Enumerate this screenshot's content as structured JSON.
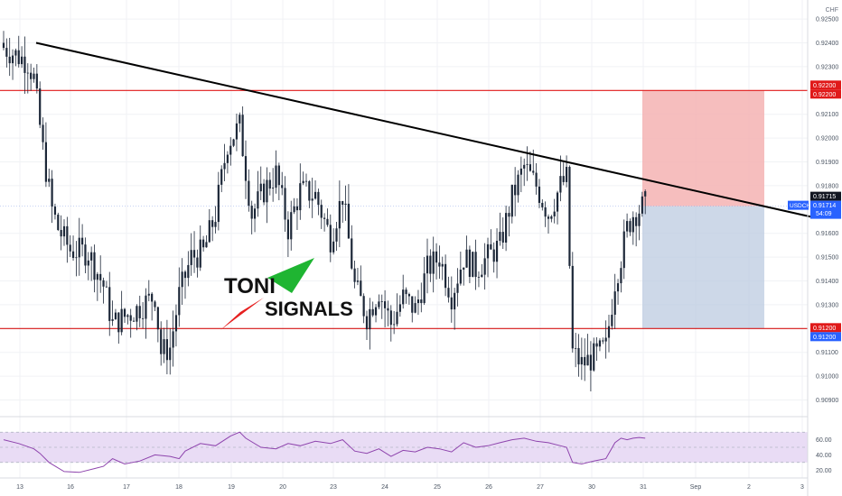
{
  "chart_data": {
    "type": "candlestick",
    "symbol": "USDCHF",
    "currency": "CHF",
    "price_axis": {
      "range": [
        0.9083,
        0.9258
      ],
      "ticks": [
        "0.92500",
        "0.92400",
        "0.92300",
        "0.92100",
        "0.92000",
        "0.91900",
        "0.91800",
        "0.91600",
        "0.91500",
        "0.91400",
        "0.91300",
        "0.91100",
        "0.91000",
        "0.90900"
      ]
    },
    "time_axis": {
      "ticks": [
        "13",
        "16",
        "17",
        "18",
        "19",
        "20",
        "23",
        "24",
        "25",
        "26",
        "27",
        "30",
        "31",
        "Sep",
        "2",
        "3"
      ]
    },
    "candles": {
      "count": 150,
      "start_price": 0.924,
      "path": [
        [
          0,
          0.9238
        ],
        [
          8,
          0.9232
        ],
        [
          10,
          0.9225
        ],
        [
          13,
          0.9195
        ],
        [
          16,
          0.917
        ],
        [
          18,
          0.9162
        ],
        [
          22,
          0.9153
        ],
        [
          28,
          0.9152
        ],
        [
          33,
          0.9138
        ],
        [
          36,
          0.9122
        ],
        [
          44,
          0.9128
        ],
        [
          50,
          0.9134
        ],
        [
          52,
          0.911
        ],
        [
          55,
          0.9112
        ],
        [
          58,
          0.9134
        ],
        [
          62,
          0.915
        ],
        [
          66,
          0.9152
        ],
        [
          70,
          0.9168
        ],
        [
          74,
          0.9198
        ],
        [
          78,
          0.9205
        ],
        [
          82,
          0.9168
        ],
        [
          86,
          0.9178
        ],
        [
          90,
          0.9185
        ],
        [
          94,
          0.9162
        ],
        [
          98,
          0.9178
        ],
        [
          103,
          0.9176
        ],
        [
          108,
          0.9158
        ],
        [
          112,
          0.9176
        ],
        [
          116,
          0.9138
        ],
        [
          120,
          0.9125
        ],
        [
          124,
          0.9136
        ],
        [
          128,
          0.9122
        ],
        [
          132,
          0.9133
        ],
        [
          136,
          0.9128
        ],
        [
          140,
          0.9145
        ],
        [
          144,
          0.915
        ],
        [
          148,
          0.9134
        ],
        [
          152,
          0.915
        ],
        [
          156,
          0.9145
        ],
        [
          160,
          0.915
        ],
        [
          164,
          0.9155
        ],
        [
          168,
          0.9175
        ],
        [
          172,
          0.9188
        ],
        [
          176,
          0.918
        ],
        [
          180,
          0.9168
        ],
        [
          184,
          0.918
        ],
        [
          186,
          0.9183
        ],
        [
          188,
          0.911
        ],
        [
          191,
          0.9105
        ],
        [
          195,
          0.9108
        ],
        [
          199,
          0.9112
        ],
        [
          202,
          0.914
        ],
        [
          204,
          0.915
        ],
        [
          206,
          0.9162
        ],
        [
          208,
          0.9168
        ],
        [
          210,
          0.917
        ],
        [
          212,
          0.9172
        ]
      ]
    },
    "last_price": "0.91714",
    "countdown": "54:09",
    "high_label": "0.91715",
    "resistance": {
      "value": "0.92200",
      "label_top": "0.92200"
    },
    "support": {
      "value": "0.91200",
      "label_bottom": "0.91200"
    },
    "trendline": {
      "from": [
        "13",
        0.924
      ],
      "to": [
        "3",
        0.9167
      ]
    },
    "position": {
      "entry": 0.91714,
      "stop": 0.922,
      "target": 0.912
    },
    "rsi": {
      "ticks": [
        "60.00",
        "40.00",
        "20.00"
      ],
      "levels": [
        70,
        50,
        30
      ],
      "range": [
        12,
        88
      ],
      "values": [
        [
          0,
          60
        ],
        [
          5,
          55
        ],
        [
          10,
          48
        ],
        [
          12,
          42
        ],
        [
          15,
          30
        ],
        [
          20,
          18
        ],
        [
          25,
          17
        ],
        [
          30,
          22
        ],
        [
          33,
          25
        ],
        [
          36,
          35
        ],
        [
          40,
          28
        ],
        [
          45,
          32
        ],
        [
          50,
          40
        ],
        [
          55,
          38
        ],
        [
          58,
          35
        ],
        [
          60,
          45
        ],
        [
          65,
          55
        ],
        [
          70,
          52
        ],
        [
          75,
          65
        ],
        [
          78,
          70
        ],
        [
          80,
          62
        ],
        [
          85,
          50
        ],
        [
          90,
          48
        ],
        [
          94,
          55
        ],
        [
          98,
          52
        ],
        [
          103,
          58
        ],
        [
          108,
          55
        ],
        [
          112,
          60
        ],
        [
          116,
          45
        ],
        [
          120,
          42
        ],
        [
          124,
          48
        ],
        [
          128,
          38
        ],
        [
          132,
          46
        ],
        [
          136,
          44
        ],
        [
          140,
          50
        ],
        [
          144,
          48
        ],
        [
          148,
          44
        ],
        [
          152,
          56
        ],
        [
          156,
          50
        ],
        [
          160,
          52
        ],
        [
          164,
          56
        ],
        [
          168,
          60
        ],
        [
          172,
          62
        ],
        [
          176,
          58
        ],
        [
          180,
          56
        ],
        [
          184,
          52
        ],
        [
          186,
          50
        ],
        [
          188,
          30
        ],
        [
          191,
          28
        ],
        [
          195,
          32
        ],
        [
          199,
          35
        ],
        [
          202,
          56
        ],
        [
          204,
          62
        ],
        [
          206,
          60
        ],
        [
          208,
          62
        ],
        [
          210,
          63
        ],
        [
          212,
          62
        ]
      ]
    },
    "colors": {
      "candle": "#1c2738",
      "trendline": "#000000",
      "resistance": "#e01919",
      "support": "#d41616",
      "stop_zone": "#f4b3b3",
      "target_zone": "#bccbe0",
      "rsi_line": "#8e44ad",
      "rsi_band": "#e9dcf5",
      "price_tag_blue": "#2962ff",
      "price_tag_red": "#e01919",
      "logo_green": "#1fb532",
      "logo_red": "#e61f1f"
    }
  },
  "logo": {
    "line1": "TONI",
    "line2": "SIGNALS"
  }
}
